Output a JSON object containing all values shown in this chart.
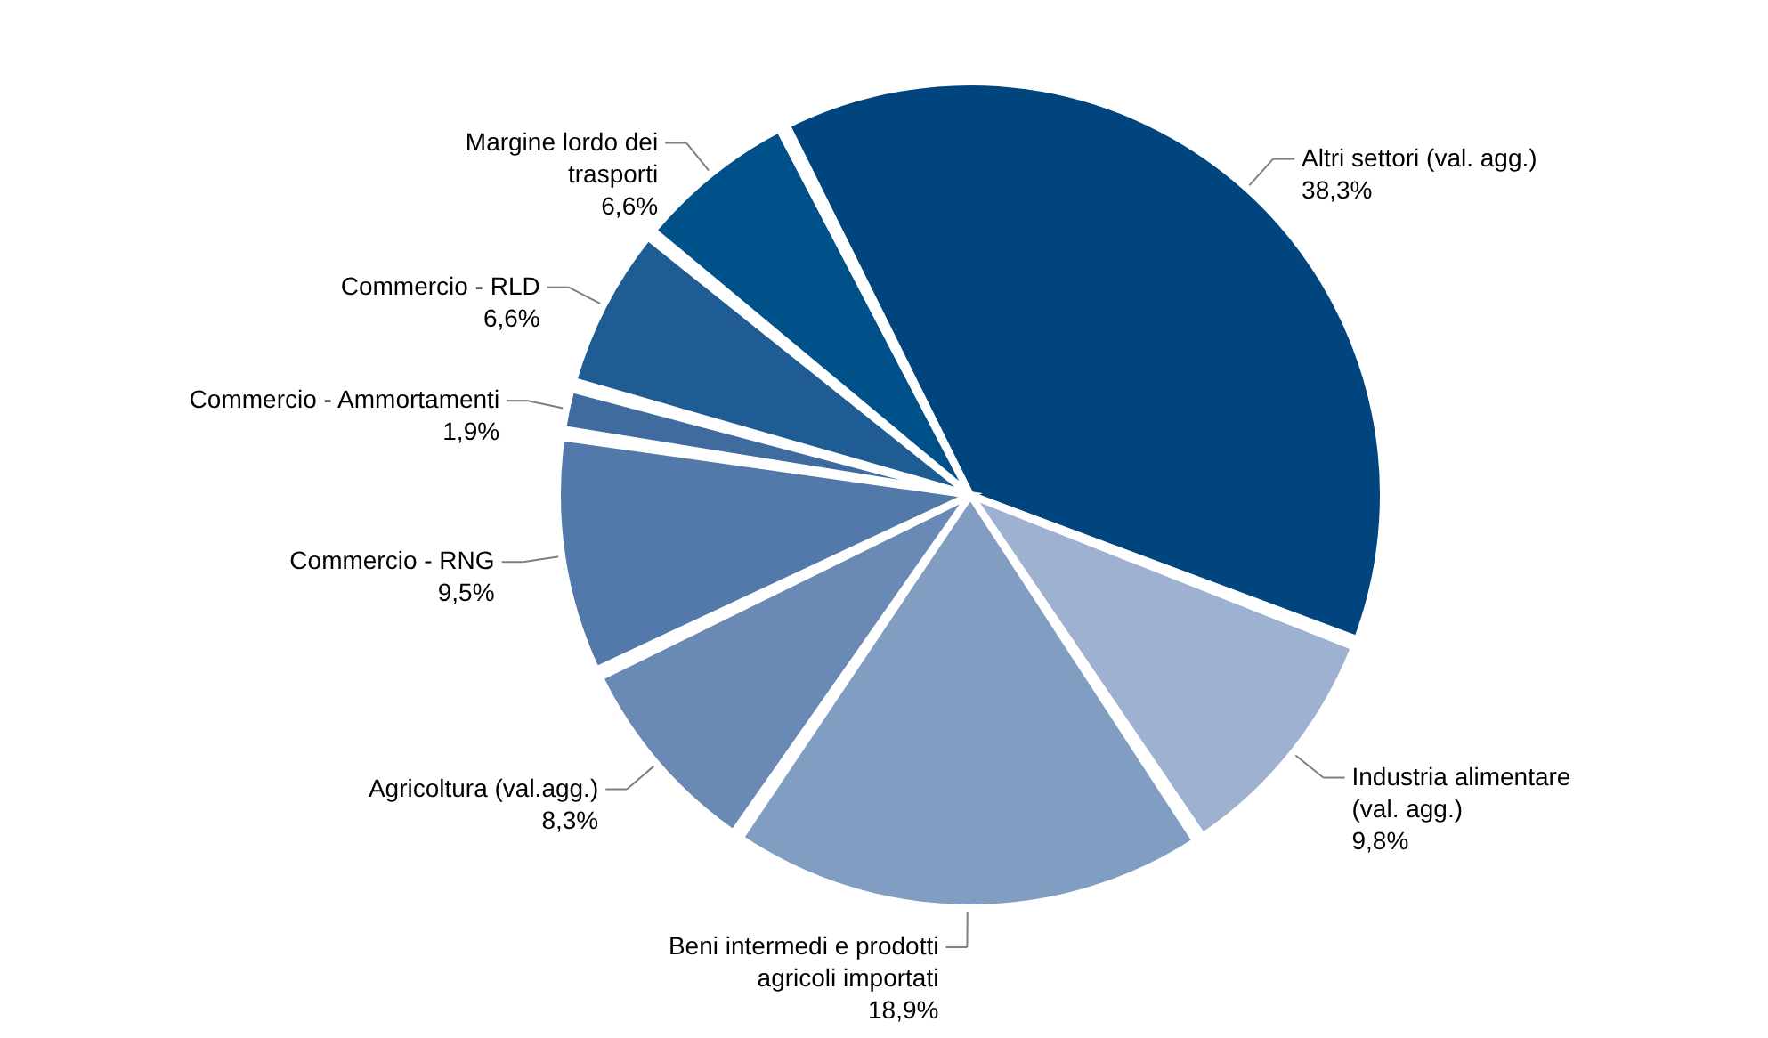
{
  "chart_data": {
    "type": "pie",
    "categories": [
      "Altri settori (val. agg.)",
      "Industria alimentare (val. agg.)",
      "Beni intermedi e prodotti agricoli importati",
      "Agricoltura (val.agg.)",
      "Commercio - RNG",
      "Commercio - Ammortamenti",
      "Commercio - RLD",
      "Margine lordo dei trasporti"
    ],
    "values": [
      38.3,
      9.8,
      18.9,
      8.3,
      9.5,
      1.9,
      6.6,
      6.6
    ],
    "colors": [
      "#00457e",
      "#9fb1d0",
      "#819dc1",
      "#6b89b5",
      "#5279a9",
      "#3f6b9f",
      "#1f5c94",
      "#005189"
    ],
    "value_labels": [
      "38,3%",
      "9,8%",
      "18,9%",
      "8,3%",
      "9,5%",
      "1,9%",
      "6,6%",
      "6,6%"
    ]
  }
}
